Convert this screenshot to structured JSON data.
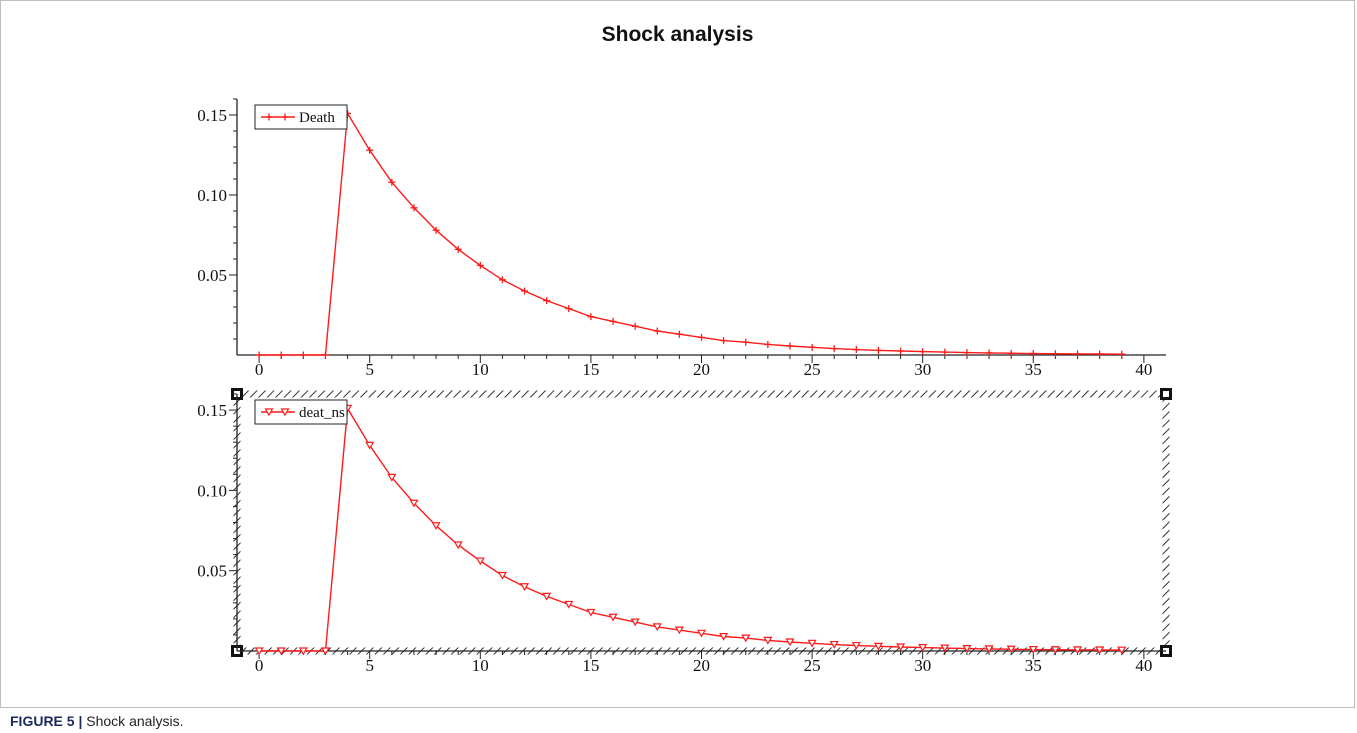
{
  "title": "Shock analysis",
  "caption": {
    "label": "FIGURE 5 |",
    "text": "Shock analysis."
  },
  "colors": {
    "series": "#ff1a1a",
    "axis": "#222222",
    "selection": "#333333"
  },
  "chart_data": [
    {
      "type": "line",
      "legend": "top-left",
      "marker": "plus",
      "grid": false,
      "xlim": [
        -1,
        41
      ],
      "ylim": [
        0,
        0.16
      ],
      "x_ticks": [
        "0",
        "5",
        "10",
        "15",
        "20",
        "25",
        "30",
        "35",
        "40"
      ],
      "y_ticks": [
        "0.05",
        "0.10",
        "0.15"
      ],
      "series": [
        {
          "name": "Death",
          "x": [
            0,
            1,
            2,
            3,
            4,
            5,
            6,
            7,
            8,
            9,
            10,
            11,
            12,
            13,
            14,
            15,
            16,
            17,
            18,
            19,
            20,
            21,
            22,
            23,
            24,
            25,
            26,
            27,
            28,
            29,
            30,
            31,
            32,
            33,
            34,
            35,
            36,
            37,
            38,
            39
          ],
          "y": [
            0,
            0,
            0,
            0,
            0.151,
            0.128,
            0.108,
            0.092,
            0.078,
            0.066,
            0.056,
            0.047,
            0.04,
            0.034,
            0.029,
            0.024,
            0.021,
            0.018,
            0.015,
            0.013,
            0.011,
            0.009,
            0.008,
            0.0066,
            0.0056,
            0.0048,
            0.004,
            0.0034,
            0.0029,
            0.0025,
            0.0021,
            0.0018,
            0.0015,
            0.0013,
            0.0011,
            0.0009,
            0.0008,
            0.0007,
            0.0006,
            0.0005
          ]
        }
      ]
    },
    {
      "type": "line",
      "legend": "top-left",
      "marker": "triangle-down",
      "grid": false,
      "xlim": [
        -1,
        41
      ],
      "ylim": [
        0,
        0.16
      ],
      "x_ticks": [
        "0",
        "5",
        "10",
        "15",
        "20",
        "25",
        "30",
        "35",
        "40"
      ],
      "y_ticks": [
        "0.05",
        "0.10",
        "0.15"
      ],
      "series": [
        {
          "name": "deat_ns",
          "x": [
            0,
            1,
            2,
            3,
            4,
            5,
            6,
            7,
            8,
            9,
            10,
            11,
            12,
            13,
            14,
            15,
            16,
            17,
            18,
            19,
            20,
            21,
            22,
            23,
            24,
            25,
            26,
            27,
            28,
            29,
            30,
            31,
            32,
            33,
            34,
            35,
            36,
            37,
            38,
            39
          ],
          "y": [
            0,
            0,
            0,
            0,
            0.151,
            0.128,
            0.108,
            0.092,
            0.078,
            0.066,
            0.056,
            0.047,
            0.04,
            0.034,
            0.029,
            0.024,
            0.021,
            0.018,
            0.015,
            0.013,
            0.011,
            0.009,
            0.008,
            0.0066,
            0.0056,
            0.0048,
            0.004,
            0.0034,
            0.0029,
            0.0025,
            0.0021,
            0.0018,
            0.0015,
            0.0013,
            0.0011,
            0.0009,
            0.0008,
            0.0007,
            0.0006,
            0.0005
          ]
        }
      ]
    }
  ]
}
